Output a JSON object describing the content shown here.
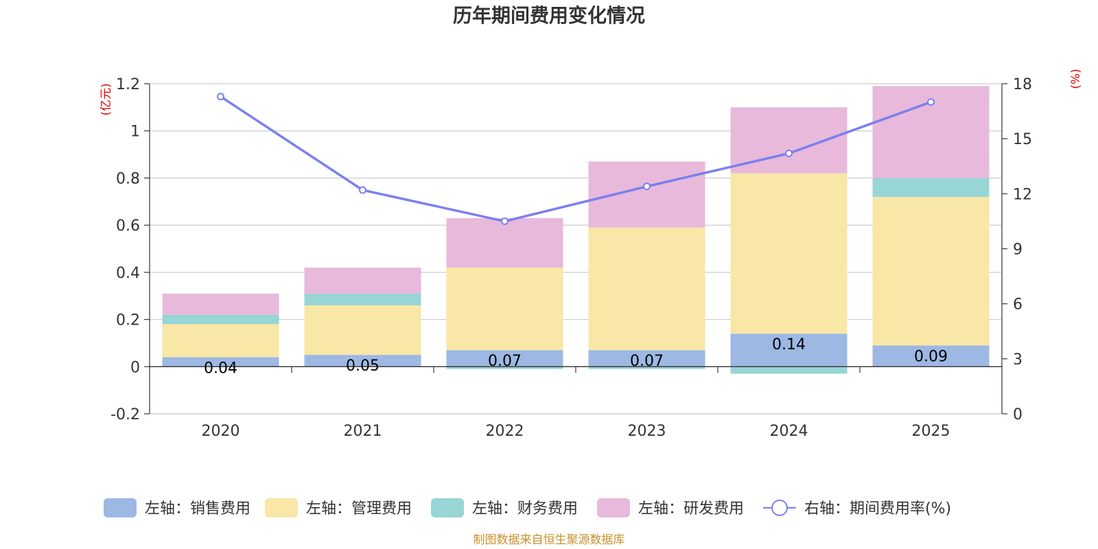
{
  "chart_data": {
    "type": "bar",
    "stacked": true,
    "title": "历年期间费用变化情况",
    "categories": [
      "2020",
      "2021",
      "2022",
      "2023",
      "2024",
      "2025"
    ],
    "left_axis": {
      "unit": "(亿元)",
      "min": -0.2,
      "max": 1.2,
      "ticks": [
        -0.2,
        0,
        0.2,
        0.4,
        0.6,
        0.8,
        1.0,
        1.2
      ],
      "tick_labels": [
        "-0.2",
        "0",
        "0.2",
        "0.4",
        "0.6",
        "0.8",
        "1",
        "1.2"
      ]
    },
    "right_axis": {
      "unit": "(%)",
      "min": 0,
      "max": 18,
      "ticks": [
        0,
        3,
        6,
        9,
        12,
        15,
        18
      ],
      "tick_labels": [
        "0",
        "3",
        "6",
        "9",
        "12",
        "15",
        "18"
      ]
    },
    "series": [
      {
        "name": "左轴：销售费用",
        "axis": "left",
        "kind": "bar",
        "color": "#9db8e3",
        "values": [
          0.04,
          0.05,
          0.07,
          0.07,
          0.14,
          0.09
        ],
        "labels": [
          "0.04",
          "0.05",
          "0.07",
          "0.07",
          "0.14",
          "0.09"
        ]
      },
      {
        "name": "左轴：管理费用",
        "axis": "left",
        "kind": "bar",
        "color": "#f8e7a6",
        "values": [
          0.14,
          0.21,
          0.35,
          0.52,
          0.68,
          0.63
        ]
      },
      {
        "name": "左轴：财务费用",
        "axis": "left",
        "kind": "bar",
        "color": "#98d5d5",
        "values": [
          0.04,
          0.05,
          -0.01,
          -0.01,
          -0.03,
          0.08
        ]
      },
      {
        "name": "左轴：研发费用",
        "axis": "left",
        "kind": "bar",
        "color": "#e8b9da",
        "values": [
          0.09,
          0.11,
          0.21,
          0.28,
          0.28,
          0.39
        ]
      },
      {
        "name": "右轴：期间费用率(%)",
        "axis": "right",
        "kind": "line",
        "color": "#7b7ff0",
        "values": [
          17.3,
          12.2,
          10.5,
          12.4,
          14.2,
          17.0
        ]
      }
    ],
    "legend_position": "bottom",
    "grid": true
  },
  "source_note": "制图数据来自恒生聚源数据库"
}
